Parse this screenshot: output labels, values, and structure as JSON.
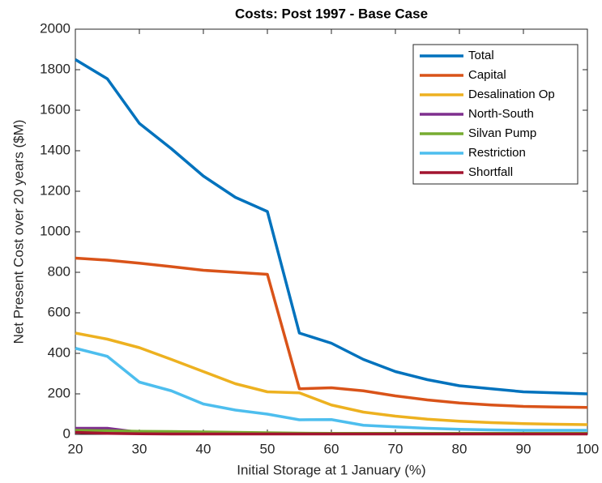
{
  "chart_data": {
    "type": "line",
    "title": "Costs: Post 1997 - Base Case",
    "x_label": "Initial Storage at 1 January (%)",
    "y_label": "Net Present Cost over 20  years ($M)",
    "x": [
      20,
      25,
      30,
      35,
      40,
      45,
      50,
      55,
      60,
      65,
      70,
      75,
      80,
      85,
      90,
      95,
      100
    ],
    "series": [
      {
        "name": "Total",
        "color": "#0072BD",
        "values": [
          1850,
          1755,
          1535,
          1410,
          1275,
          1170,
          1100,
          500,
          450,
          370,
          310,
          270,
          240,
          225,
          210,
          205,
          200
        ]
      },
      {
        "name": "Capital",
        "color": "#D95319",
        "values": [
          870,
          860,
          845,
          828,
          810,
          800,
          790,
          225,
          230,
          215,
          190,
          170,
          155,
          145,
          138,
          135,
          133
        ]
      },
      {
        "name": "Desalination Op",
        "color": "#EDB120",
        "values": [
          500,
          470,
          428,
          370,
          310,
          250,
          210,
          205,
          145,
          110,
          90,
          75,
          65,
          58,
          53,
          50,
          48
        ]
      },
      {
        "name": "North-South",
        "color": "#7E2F8E",
        "values": [
          30,
          30,
          10,
          10,
          8,
          6,
          5,
          4,
          3,
          3,
          3,
          3,
          3,
          3,
          3,
          3,
          3
        ]
      },
      {
        "name": "Silvan Pump",
        "color": "#77AC30",
        "values": [
          20,
          18,
          15,
          14,
          12,
          10,
          8,
          6,
          5,
          5,
          5,
          5,
          5,
          5,
          5,
          5,
          5
        ]
      },
      {
        "name": "Restriction",
        "color": "#4DBEEE",
        "values": [
          425,
          385,
          258,
          215,
          150,
          120,
          100,
          72,
          73,
          45,
          37,
          30,
          25,
          22,
          20,
          20,
          20
        ]
      },
      {
        "name": "Shortfall",
        "color": "#A2142F",
        "values": [
          10,
          5,
          3,
          2,
          2,
          2,
          2,
          2,
          2,
          2,
          2,
          2,
          2,
          2,
          2,
          2,
          2
        ]
      }
    ],
    "xlim": [
      20,
      100
    ],
    "xticks": [
      20,
      30,
      40,
      50,
      60,
      70,
      80,
      90,
      100
    ],
    "ylim": [
      0,
      2000
    ],
    "yticks": [
      0,
      200,
      400,
      600,
      800,
      1000,
      1200,
      1400,
      1600,
      1800,
      2000
    ],
    "legend": "upper right"
  }
}
